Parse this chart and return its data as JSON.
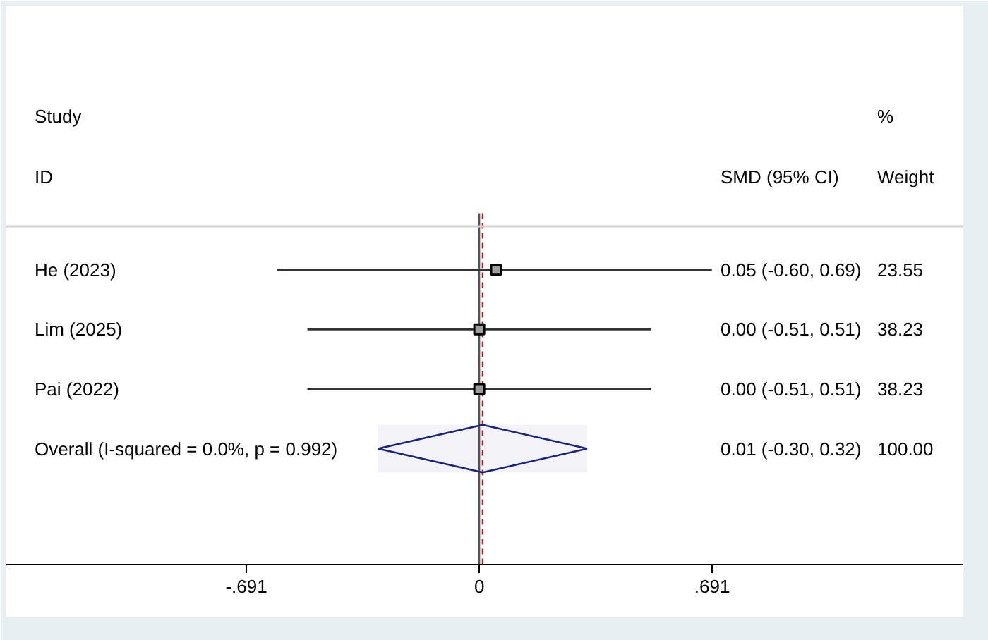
{
  "chart_data": {
    "type": "bar",
    "orientation": "horizontal",
    "categories": [
      "He (2023)",
      "Lim (2025)",
      "Pai (2022)",
      "Overall  (I-squared = 0.0%, p = 0.992)"
    ],
    "series": [
      {
        "color": "#333333",
        "base": [
          -0.6,
          -0.51,
          -0.51,
          null
        ],
        "values": [
          1.29,
          1.02,
          1.02,
          null
        ]
      },
      {
        "marker": "diamond",
        "color": "#1a237e",
        "base": [
          null,
          null,
          null,
          -0.3
        ],
        "values": [
          null,
          null,
          null,
          0.62
        ]
      },
      {
        "type": "scatter",
        "marker": "square",
        "color": "#000000",
        "x": [
          "He (2023)",
          "Lim (2025)",
          "Pai (2022)"
        ],
        "values": [
          0.05,
          0.0,
          0.0
        ]
      }
    ],
    "value_labels": [
      "0.05 (-0.60, 0.69)",
      "0.00 (-0.51, 0.51)",
      "0.00 (-0.51, 0.51)",
      "0.01 (-0.30, 0.32)"
    ],
    "annotations": [
      "Study",
      "ID",
      "SMD (95% CI)",
      "%",
      "Weight",
      "23.55",
      "38.23",
      "38.23",
      "100.00"
    ],
    "ref_lines": [
      {
        "axis": "x",
        "value": 0,
        "color": "#555555",
        "line_style": "solid"
      },
      {
        "axis": "x",
        "value": 0.01,
        "color": "#b22222",
        "line_style": "dashed"
      }
    ],
    "xlim": [
      -1.403,
      1.436
    ],
    "xticks": [
      {
        "value": -0.691,
        "label": "-.691"
      },
      0,
      {
        "value": 0.691,
        "label": ".691"
      }
    ],
    "grid": false
  }
}
